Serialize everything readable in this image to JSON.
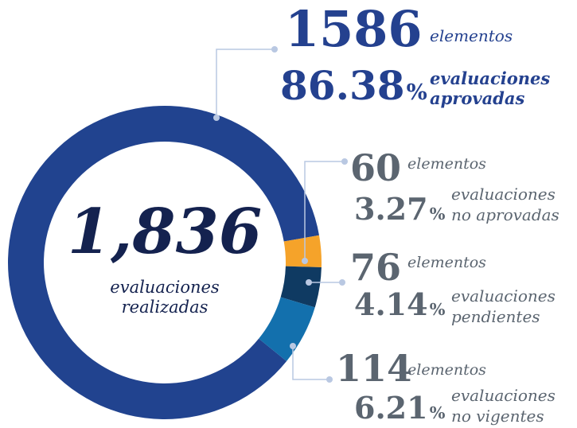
{
  "chart_data": {
    "type": "donut",
    "total": {
      "value": 1836,
      "label": "1,836"
    },
    "total_caption": [
      "evaluaciones",
      "realizadas"
    ],
    "values": [
      1586,
      60,
      76,
      114
    ],
    "count_unit": "elementos",
    "percents": [
      86.38,
      3.27,
      4.14,
      6.21
    ],
    "percent_unit": "%",
    "descriptions": [
      [
        "evaluaciones",
        "aprovadas"
      ],
      [
        "evaluaciones",
        "no aprovadas"
      ],
      [
        "evaluaciones",
        "pendientes"
      ],
      [
        "evaluaciones",
        "no vigentes"
      ]
    ],
    "colors": [
      "#21438f",
      "#f5a32a",
      "#0f3a62",
      "#1370ad"
    ],
    "label_colors": [
      "#24418f",
      "#5b6570",
      "#5b6570",
      "#5b6570"
    ]
  }
}
